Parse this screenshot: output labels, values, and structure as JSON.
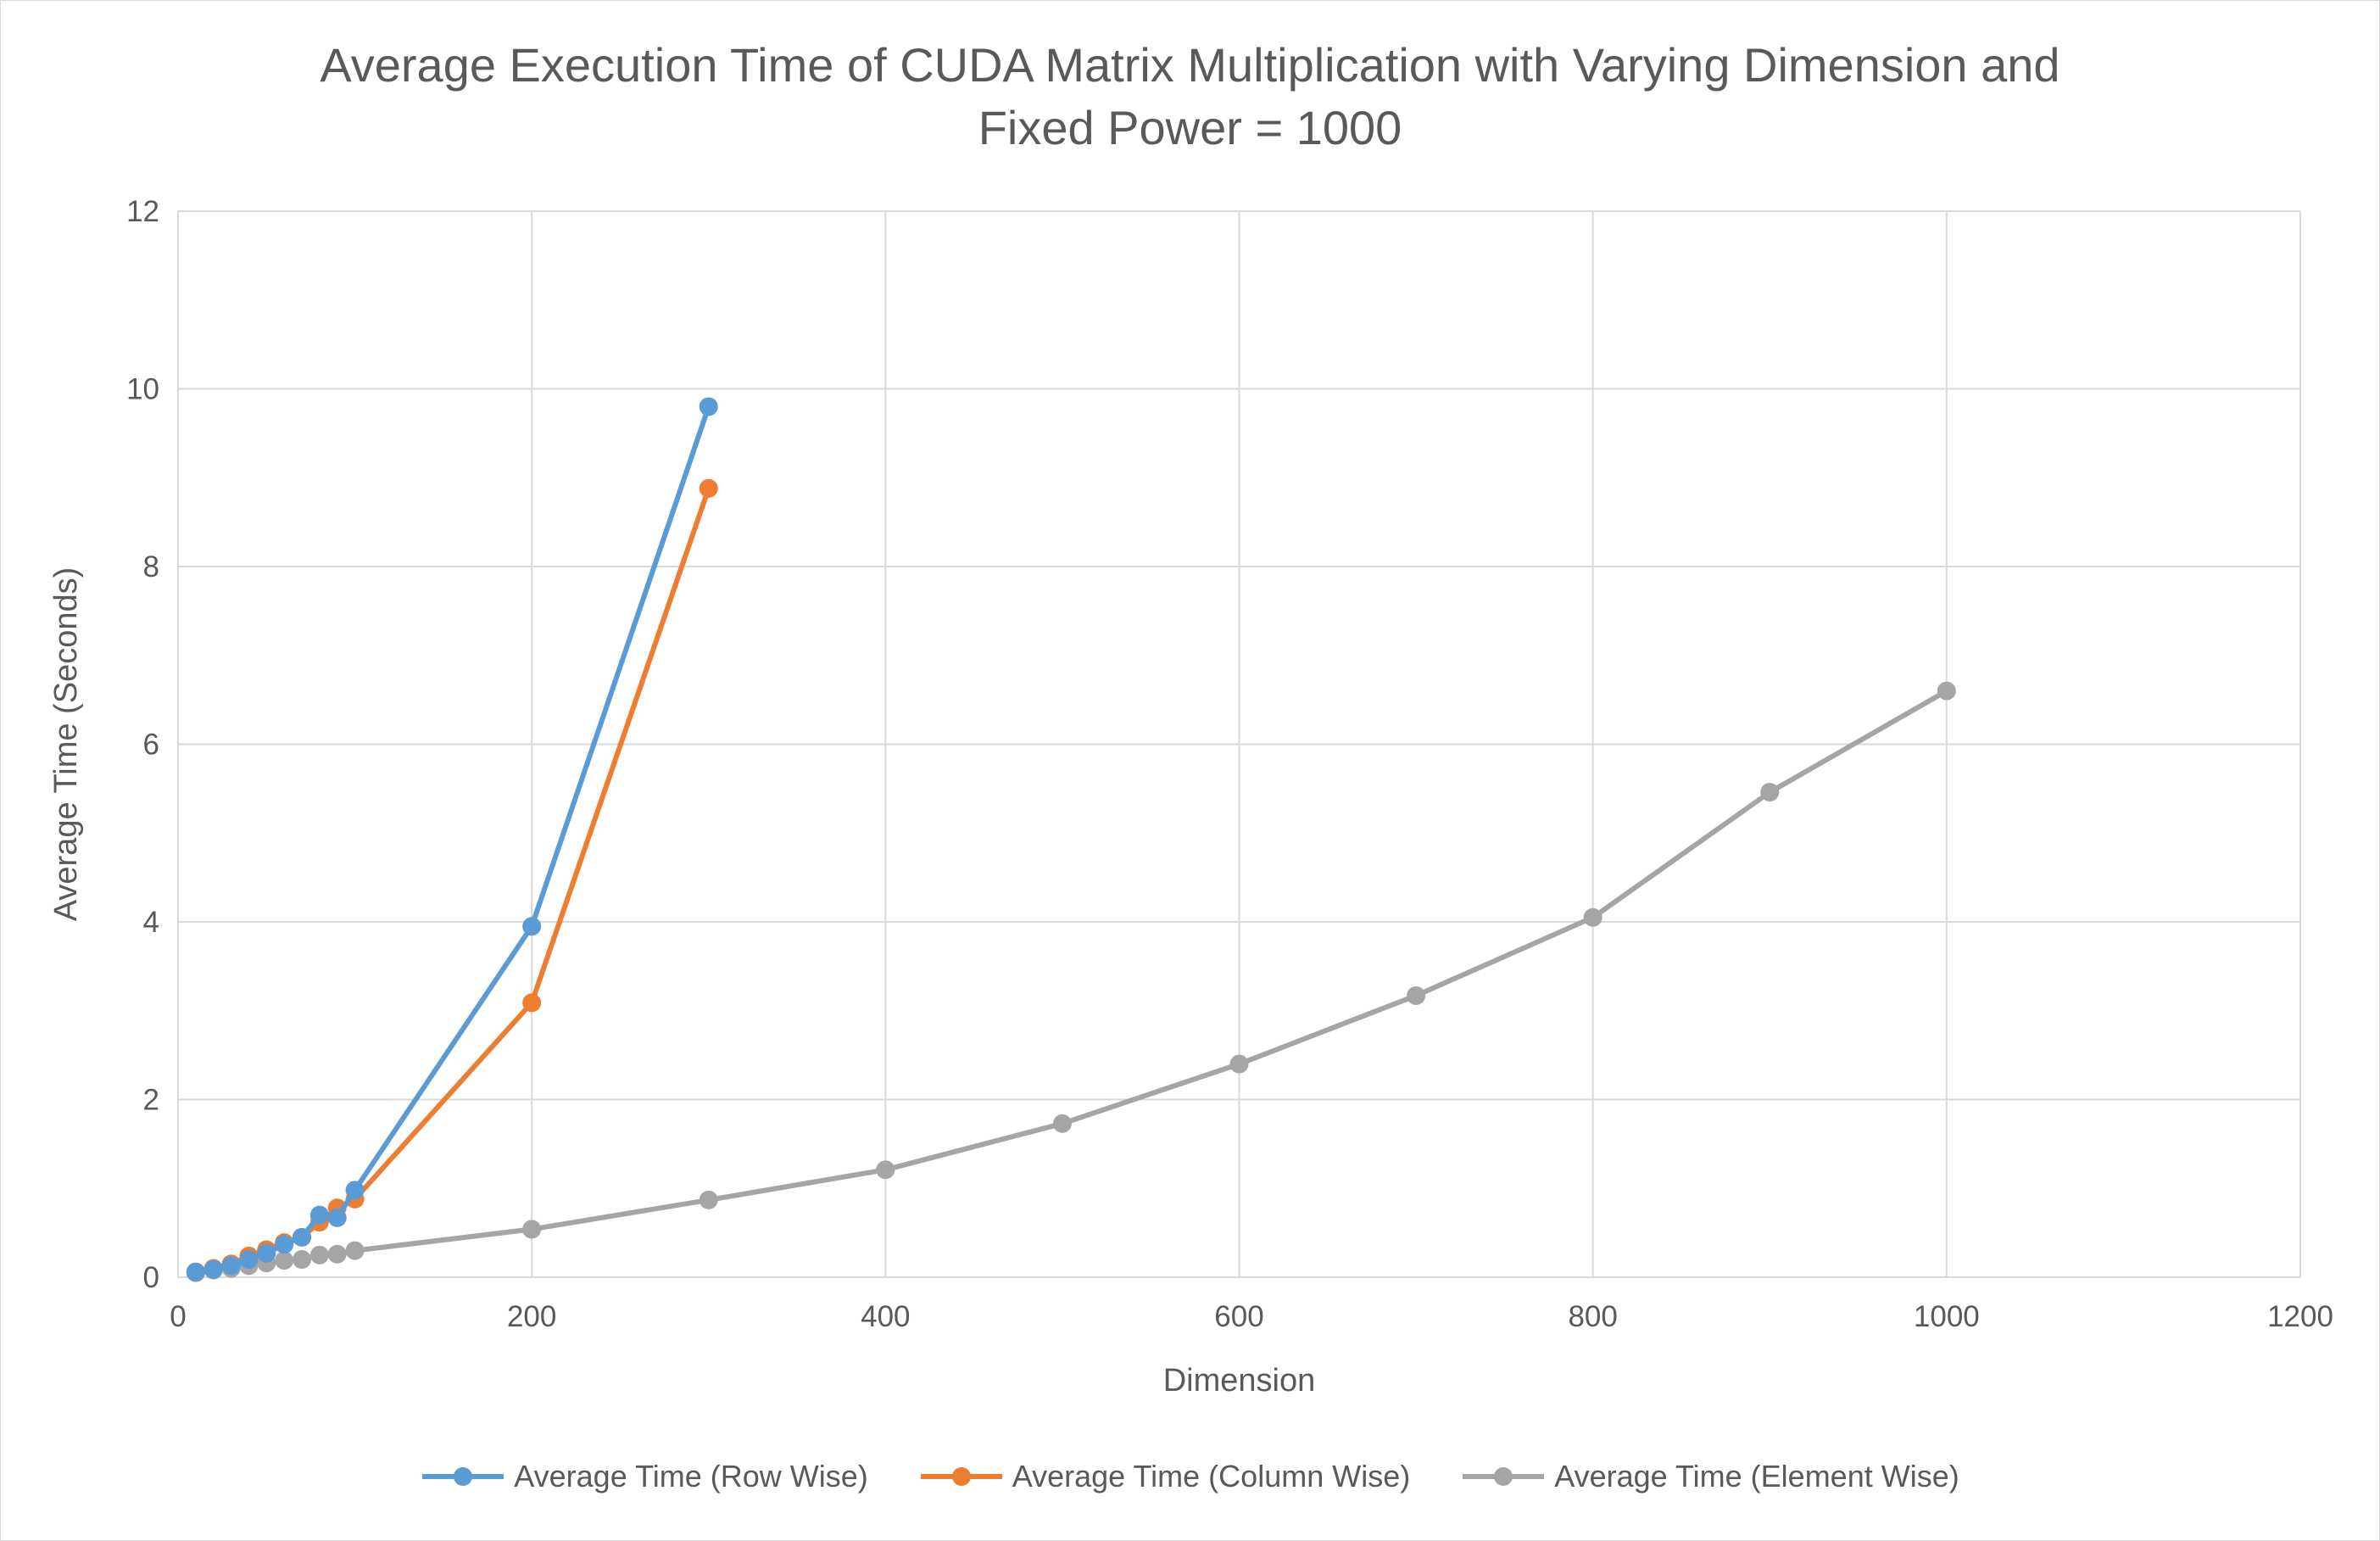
{
  "chart_data": {
    "type": "line",
    "title_lines": [
      "Average Execution Time of CUDA Matrix Multiplication with Varying Dimension and",
      "Fixed Power = 1000"
    ],
    "xlabel": "Dimension",
    "ylabel": "Average Time (Seconds)",
    "xlim": [
      0,
      1200
    ],
    "ylim": [
      0,
      12
    ],
    "x_ticks": [
      "0",
      "200",
      "400",
      "600",
      "800",
      "1000",
      "1200"
    ],
    "y_ticks": [
      "0",
      "2",
      "4",
      "6",
      "8",
      "10",
      "12"
    ],
    "grid": true,
    "legend_position": "bottom",
    "series": [
      {
        "name": "Average Time (Row Wise)",
        "color": "#5b9bd5",
        "x": [
          10,
          20,
          30,
          40,
          50,
          60,
          70,
          80,
          90,
          100,
          200,
          300
        ],
        "y": [
          0.06,
          0.09,
          0.13,
          0.2,
          0.27,
          0.37,
          0.45,
          0.7,
          0.67,
          0.98,
          3.95,
          9.8
        ]
      },
      {
        "name": "Average Time (Column Wise)",
        "color": "#ed7d31",
        "x": [
          10,
          20,
          30,
          40,
          50,
          60,
          70,
          80,
          90,
          100,
          200,
          300
        ],
        "y": [
          0.06,
          0.1,
          0.15,
          0.24,
          0.31,
          0.39,
          0.45,
          0.62,
          0.78,
          0.88,
          3.09,
          8.88
        ]
      },
      {
        "name": "Average Time (Element Wise)",
        "color": "#a5a5a5",
        "x": [
          10,
          20,
          30,
          40,
          50,
          60,
          70,
          80,
          90,
          100,
          200,
          300,
          400,
          500,
          600,
          700,
          800,
          900,
          1000
        ],
        "y": [
          0.05,
          0.08,
          0.1,
          0.13,
          0.16,
          0.19,
          0.2,
          0.25,
          0.26,
          0.3,
          0.54,
          0.87,
          1.21,
          1.73,
          2.4,
          3.17,
          4.05,
          5.46,
          6.6
        ]
      }
    ]
  }
}
